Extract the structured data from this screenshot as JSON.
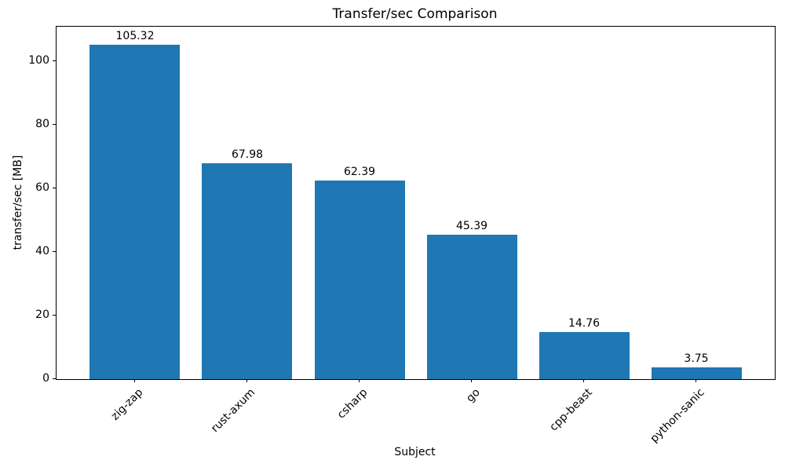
{
  "chart_data": {
    "type": "bar",
    "title": "Transfer/sec Comparison",
    "xlabel": "Subject",
    "ylabel": "transfer/sec [MB]",
    "categories": [
      "zig-zap",
      "rust-axum",
      "csharp",
      "go",
      "cpp-beast",
      "python-sanic"
    ],
    "values": [
      105.32,
      67.98,
      62.39,
      45.39,
      14.76,
      3.75
    ],
    "bar_labels": [
      "105.32",
      "67.98",
      "62.39",
      "45.39",
      "14.76",
      "3.75"
    ],
    "ytick_labels": [
      "0",
      "20",
      "40",
      "60",
      "80",
      "100"
    ],
    "ytick_values": [
      0,
      20,
      40,
      60,
      80,
      100
    ],
    "ylim": [
      0,
      110.9
    ],
    "bar_color": "#1f77b4",
    "text_color": "#000000",
    "spine_color": "#000000",
    "grid": false,
    "legend_position": "none",
    "x_tick_rotation_deg": 45,
    "bar_width_fraction": 0.8
  }
}
